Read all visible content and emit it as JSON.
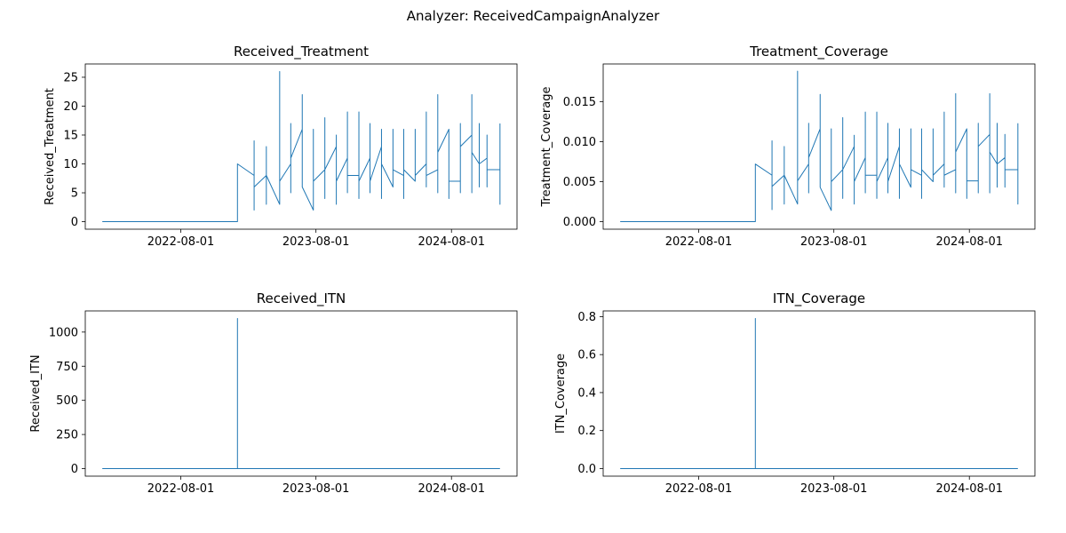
{
  "figure": {
    "suptitle": "Analyzer: ReceivedCampaignAnalyzer"
  },
  "colors": {
    "line": "#1f77b4",
    "axes": "#000000",
    "background": "#ffffff"
  },
  "chart_data": [
    {
      "type": "line",
      "title": "Received_Treatment",
      "xlabel": "",
      "ylabel": "Received_Treatment",
      "x_type": "date",
      "xlim": [
        "2021-11-16",
        "2025-01-25"
      ],
      "ylim": [
        -1.3,
        27.3
      ],
      "xticks": [
        "2022-08-01",
        "2023-08-01",
        "2024-08-01"
      ],
      "yticks": [
        0,
        5,
        10,
        15,
        20,
        25
      ],
      "series": [
        {
          "points": [
            [
              "2022-01-01",
              0
            ],
            [
              "2023-01-01",
              0
            ],
            [
              "2023-01-01",
              10
            ],
            [
              "2023-02-15",
              8
            ],
            [
              "2023-02-15",
              2
            ],
            [
              "2023-02-15",
              14
            ],
            [
              "2023-02-15",
              6
            ],
            [
              "2023-03-20",
              8
            ],
            [
              "2023-03-20",
              3
            ],
            [
              "2023-03-20",
              13
            ],
            [
              "2023-03-20",
              8
            ],
            [
              "2023-04-25",
              3
            ],
            [
              "2023-04-25",
              26
            ],
            [
              "2023-04-25",
              7
            ],
            [
              "2023-05-25",
              10
            ],
            [
              "2023-05-25",
              5
            ],
            [
              "2023-05-25",
              17
            ],
            [
              "2023-05-25",
              11
            ],
            [
              "2023-06-25",
              16
            ],
            [
              "2023-06-25",
              22
            ],
            [
              "2023-06-25",
              6
            ],
            [
              "2023-07-25",
              2
            ],
            [
              "2023-07-25",
              16
            ],
            [
              "2023-07-25",
              7
            ],
            [
              "2023-08-25",
              9
            ],
            [
              "2023-08-25",
              4
            ],
            [
              "2023-08-25",
              18
            ],
            [
              "2023-08-25",
              9
            ],
            [
              "2023-09-25",
              13
            ],
            [
              "2023-09-25",
              3
            ],
            [
              "2023-09-25",
              15
            ],
            [
              "2023-09-25",
              7
            ],
            [
              "2023-10-25",
              11
            ],
            [
              "2023-10-25",
              5
            ],
            [
              "2023-10-25",
              19
            ],
            [
              "2023-10-25",
              8
            ],
            [
              "2023-11-25",
              8
            ],
            [
              "2023-11-25",
              4
            ],
            [
              "2023-11-25",
              19
            ],
            [
              "2023-11-25",
              7
            ],
            [
              "2023-12-25",
              11
            ],
            [
              "2023-12-25",
              5
            ],
            [
              "2023-12-25",
              17
            ],
            [
              "2023-12-25",
              7
            ],
            [
              "2024-01-25",
              13
            ],
            [
              "2024-01-25",
              4
            ],
            [
              "2024-01-25",
              16
            ],
            [
              "2024-01-25",
              10
            ],
            [
              "2024-02-25",
              6
            ],
            [
              "2024-02-25",
              16
            ],
            [
              "2024-02-25",
              9
            ],
            [
              "2024-03-25",
              8
            ],
            [
              "2024-03-25",
              4
            ],
            [
              "2024-03-25",
              16
            ],
            [
              "2024-03-25",
              9
            ],
            [
              "2024-04-25",
              7
            ],
            [
              "2024-04-25",
              16
            ],
            [
              "2024-04-25",
              8
            ],
            [
              "2024-05-25",
              10
            ],
            [
              "2024-05-25",
              6
            ],
            [
              "2024-05-25",
              19
            ],
            [
              "2024-05-25",
              8
            ],
            [
              "2024-06-25",
              9
            ],
            [
              "2024-06-25",
              5
            ],
            [
              "2024-06-25",
              22
            ],
            [
              "2024-06-25",
              12
            ],
            [
              "2024-07-25",
              16
            ],
            [
              "2024-07-25",
              4
            ],
            [
              "2024-07-25",
              7
            ],
            [
              "2024-08-25",
              7
            ],
            [
              "2024-08-25",
              5
            ],
            [
              "2024-08-25",
              17
            ],
            [
              "2024-08-25",
              13
            ],
            [
              "2024-09-25",
              15
            ],
            [
              "2024-09-25",
              5
            ],
            [
              "2024-09-25",
              22
            ],
            [
              "2024-09-25",
              12
            ],
            [
              "2024-10-15",
              10
            ],
            [
              "2024-10-15",
              6
            ],
            [
              "2024-10-15",
              17
            ],
            [
              "2024-10-15",
              10
            ],
            [
              "2024-11-05",
              11
            ],
            [
              "2024-11-05",
              6
            ],
            [
              "2024-11-05",
              15
            ],
            [
              "2024-11-05",
              9
            ],
            [
              "2024-12-10",
              9
            ],
            [
              "2024-12-10",
              3
            ],
            [
              "2024-12-10",
              17
            ]
          ]
        }
      ]
    },
    {
      "type": "line",
      "title": "Treatment_Coverage",
      "xlabel": "",
      "ylabel": "Treatment_Coverage",
      "x_type": "date",
      "xlim": [
        "2021-11-16",
        "2025-01-25"
      ],
      "ylim": [
        -0.00094,
        0.0197
      ],
      "xticks": [
        "2022-08-01",
        "2023-08-01",
        "2024-08-01"
      ],
      "yticks": [
        0.0,
        0.005,
        0.01,
        0.015
      ],
      "ytick_labels": [
        "0.000",
        "0.005",
        "0.010",
        "0.015"
      ],
      "series": [
        {
          "points": [
            [
              "2022-01-01",
              0
            ],
            [
              "2023-01-01",
              0
            ],
            [
              "2023-01-01",
              0.0072
            ],
            [
              "2023-02-15",
              0.0058
            ],
            [
              "2023-02-15",
              0.0015
            ],
            [
              "2023-02-15",
              0.0101
            ],
            [
              "2023-02-15",
              0.0044
            ],
            [
              "2023-03-20",
              0.0058
            ],
            [
              "2023-03-20",
              0.0022
            ],
            [
              "2023-03-20",
              0.0094
            ],
            [
              "2023-03-20",
              0.0058
            ],
            [
              "2023-04-25",
              0.0022
            ],
            [
              "2023-04-25",
              0.0188
            ],
            [
              "2023-04-25",
              0.0051
            ],
            [
              "2023-05-25",
              0.0072
            ],
            [
              "2023-05-25",
              0.0036
            ],
            [
              "2023-05-25",
              0.0123
            ],
            [
              "2023-05-25",
              0.008
            ],
            [
              "2023-06-25",
              0.0116
            ],
            [
              "2023-06-25",
              0.0159
            ],
            [
              "2023-06-25",
              0.0043
            ],
            [
              "2023-07-25",
              0.0014
            ],
            [
              "2023-07-25",
              0.0116
            ],
            [
              "2023-07-25",
              0.005
            ],
            [
              "2023-08-25",
              0.0065
            ],
            [
              "2023-08-25",
              0.0029
            ],
            [
              "2023-08-25",
              0.013
            ],
            [
              "2023-08-25",
              0.0065
            ],
            [
              "2023-09-25",
              0.0094
            ],
            [
              "2023-09-25",
              0.0022
            ],
            [
              "2023-09-25",
              0.0108
            ],
            [
              "2023-09-25",
              0.005
            ],
            [
              "2023-10-25",
              0.008
            ],
            [
              "2023-10-25",
              0.0036
            ],
            [
              "2023-10-25",
              0.0137
            ],
            [
              "2023-10-25",
              0.0058
            ],
            [
              "2023-11-25",
              0.0058
            ],
            [
              "2023-11-25",
              0.0029
            ],
            [
              "2023-11-25",
              0.0137
            ],
            [
              "2023-11-25",
              0.005
            ],
            [
              "2023-12-25",
              0.008
            ],
            [
              "2023-12-25",
              0.0036
            ],
            [
              "2023-12-25",
              0.0123
            ],
            [
              "2023-12-25",
              0.005
            ],
            [
              "2024-01-25",
              0.0094
            ],
            [
              "2024-01-25",
              0.0029
            ],
            [
              "2024-01-25",
              0.0116
            ],
            [
              "2024-01-25",
              0.0072
            ],
            [
              "2024-02-25",
              0.0043
            ],
            [
              "2024-02-25",
              0.0116
            ],
            [
              "2024-02-25",
              0.0065
            ],
            [
              "2024-03-25",
              0.0058
            ],
            [
              "2024-03-25",
              0.0029
            ],
            [
              "2024-03-25",
              0.0116
            ],
            [
              "2024-03-25",
              0.0065
            ],
            [
              "2024-04-25",
              0.005
            ],
            [
              "2024-04-25",
              0.0116
            ],
            [
              "2024-04-25",
              0.0058
            ],
            [
              "2024-05-25",
              0.0072
            ],
            [
              "2024-05-25",
              0.0043
            ],
            [
              "2024-05-25",
              0.0137
            ],
            [
              "2024-05-25",
              0.0058
            ],
            [
              "2024-06-25",
              0.0065
            ],
            [
              "2024-06-25",
              0.0036
            ],
            [
              "2024-06-25",
              0.016
            ],
            [
              "2024-06-25",
              0.0087
            ],
            [
              "2024-07-25",
              0.0116
            ],
            [
              "2024-07-25",
              0.0029
            ],
            [
              "2024-07-25",
              0.0051
            ],
            [
              "2024-08-25",
              0.0051
            ],
            [
              "2024-08-25",
              0.0036
            ],
            [
              "2024-08-25",
              0.0123
            ],
            [
              "2024-08-25",
              0.0094
            ],
            [
              "2024-09-25",
              0.0109
            ],
            [
              "2024-09-25",
              0.0036
            ],
            [
              "2024-09-25",
              0.016
            ],
            [
              "2024-09-25",
              0.0087
            ],
            [
              "2024-10-15",
              0.0072
            ],
            [
              "2024-10-15",
              0.0043
            ],
            [
              "2024-10-15",
              0.0123
            ],
            [
              "2024-10-15",
              0.0072
            ],
            [
              "2024-11-05",
              0.008
            ],
            [
              "2024-11-05",
              0.0043
            ],
            [
              "2024-11-05",
              0.0109
            ],
            [
              "2024-11-05",
              0.0065
            ],
            [
              "2024-12-10",
              0.0065
            ],
            [
              "2024-12-10",
              0.0022
            ],
            [
              "2024-12-10",
              0.0123
            ]
          ]
        }
      ]
    },
    {
      "type": "line",
      "title": "Received_ITN",
      "xlabel": "",
      "ylabel": "Received_ITN",
      "x_type": "date",
      "xlim": [
        "2021-11-16",
        "2025-01-25"
      ],
      "ylim": [
        -55,
        1155
      ],
      "xticks": [
        "2022-08-01",
        "2023-08-01",
        "2024-08-01"
      ],
      "yticks": [
        0,
        250,
        500,
        750,
        1000
      ],
      "series": [
        {
          "points": [
            [
              "2022-01-01",
              0
            ],
            [
              "2023-01-01",
              0
            ],
            [
              "2023-01-01",
              1100
            ],
            [
              "2023-01-01",
              0
            ],
            [
              "2024-12-10",
              0
            ]
          ]
        }
      ]
    },
    {
      "type": "line",
      "title": "ITN_Coverage",
      "xlabel": "",
      "ylabel": "ITN_Coverage",
      "x_type": "date",
      "xlim": [
        "2021-11-16",
        "2025-01-25"
      ],
      "ylim": [
        -0.04,
        0.83
      ],
      "xticks": [
        "2022-08-01",
        "2023-08-01",
        "2024-08-01"
      ],
      "yticks": [
        0.0,
        0.2,
        0.4,
        0.6,
        0.8
      ],
      "ytick_labels": [
        "0.0",
        "0.2",
        "0.4",
        "0.6",
        "0.8"
      ],
      "series": [
        {
          "points": [
            [
              "2022-01-01",
              0
            ],
            [
              "2023-01-01",
              0
            ],
            [
              "2023-01-01",
              0.79
            ],
            [
              "2023-01-01",
              0
            ],
            [
              "2024-12-10",
              0
            ]
          ]
        }
      ]
    }
  ]
}
